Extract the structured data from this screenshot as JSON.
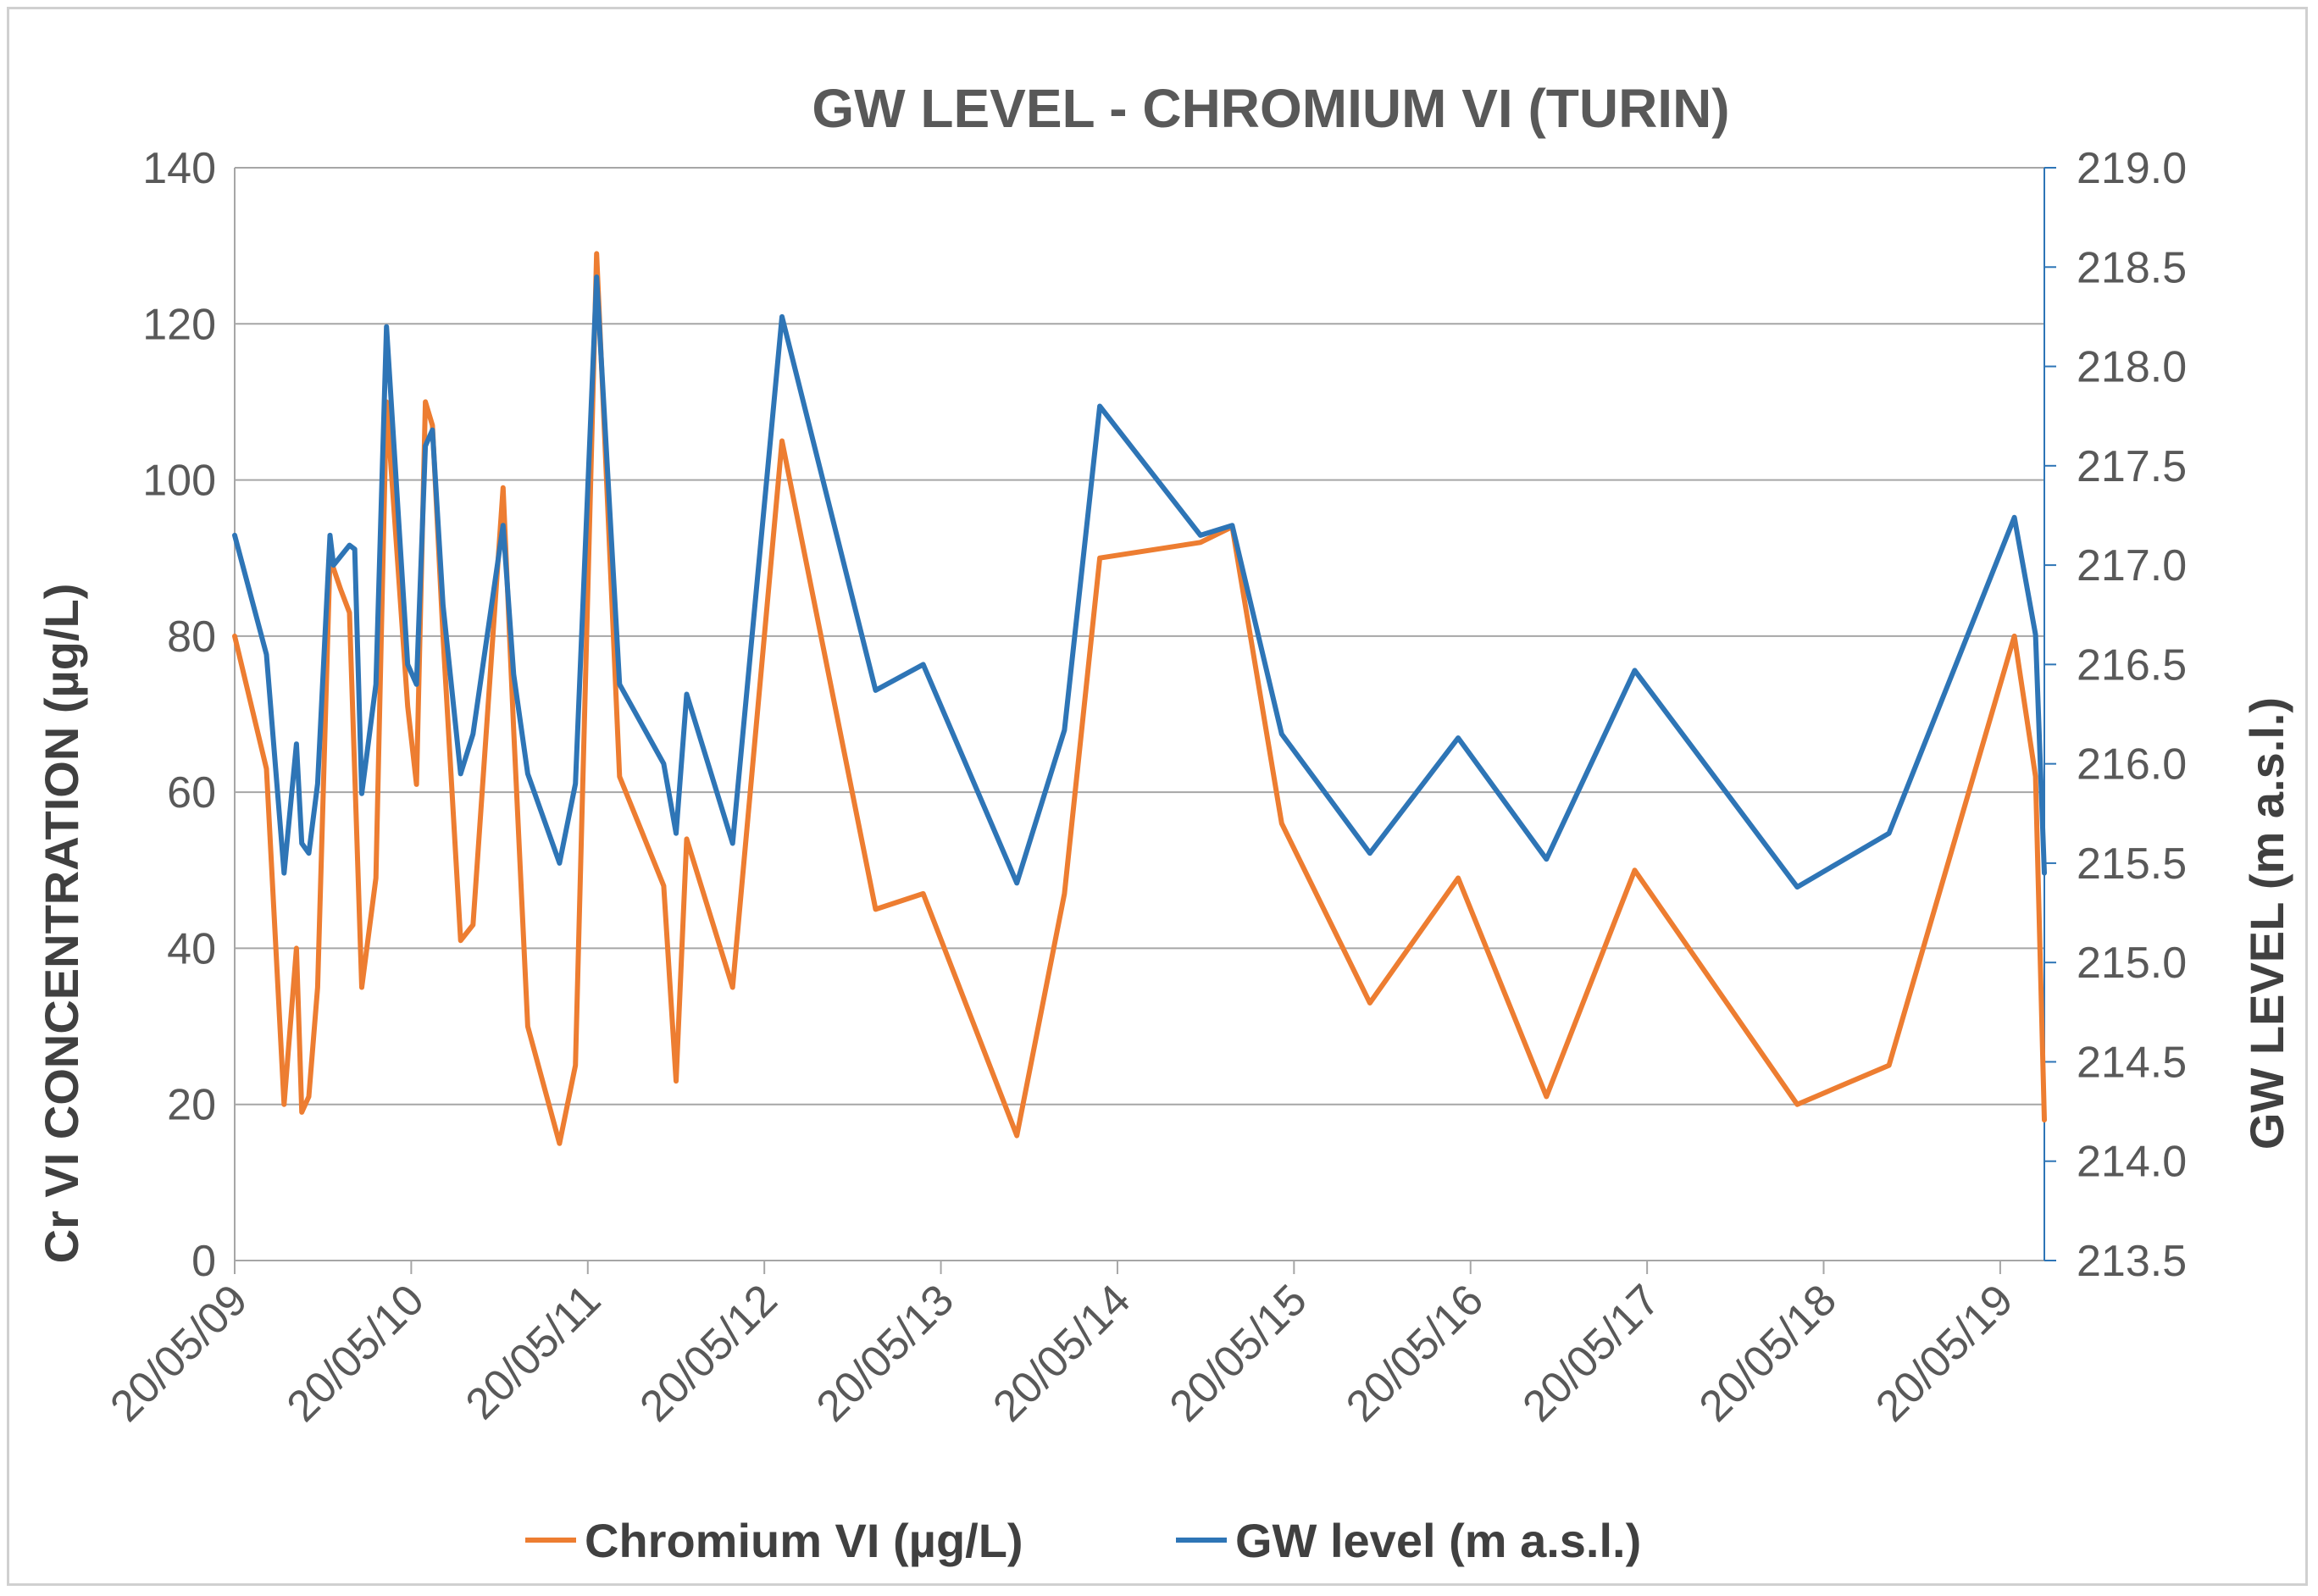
{
  "chart_data": {
    "type": "line",
    "title": "GW  LEVEL - CHROMIUM VI (TURIN)",
    "ylabel_left": "Cr VI CONCENTRATION (µg/L)",
    "ylabel_right": "GW LEVEL (m a.s.l.)",
    "ylim_left": [
      0,
      140
    ],
    "ylim_right": [
      213.5,
      219.0
    ],
    "yticks_left": [
      "0",
      "20",
      "40",
      "60",
      "80",
      "100",
      "120",
      "140"
    ],
    "yticks_right": [
      "213.5",
      "214.0",
      "214.5",
      "215.0",
      "215.5",
      "216.0",
      "216.5",
      "217.0",
      "217.5",
      "218.0",
      "218.5",
      "219.0"
    ],
    "xlim_years": [
      0,
      10.25
    ],
    "xticks": [
      "20/05/09",
      "20/05/10",
      "20/05/11",
      "20/05/12",
      "20/05/13",
      "20/05/14",
      "20/05/15",
      "20/05/16",
      "20/05/17",
      "20/05/18",
      "20/05/19"
    ],
    "x_unit": "years since 20/05/09",
    "gridlines": "horizontal",
    "legend_position": "bottom",
    "series": [
      {
        "name": "Chromium VI (µg/L)",
        "axis": "left",
        "color": "#ED7D31",
        "points": [
          [
            0.0,
            80
          ],
          [
            0.18,
            63
          ],
          [
            0.28,
            20
          ],
          [
            0.35,
            40
          ],
          [
            0.38,
            19
          ],
          [
            0.42,
            21
          ],
          [
            0.47,
            35
          ],
          [
            0.54,
            90
          ],
          [
            0.6,
            86
          ],
          [
            0.65,
            83
          ],
          [
            0.72,
            35
          ],
          [
            0.8,
            49
          ],
          [
            0.86,
            110
          ],
          [
            0.98,
            71
          ],
          [
            1.03,
            61
          ],
          [
            1.08,
            110
          ],
          [
            1.12,
            107
          ],
          [
            1.18,
            80
          ],
          [
            1.28,
            41
          ],
          [
            1.35,
            43
          ],
          [
            1.52,
            99
          ],
          [
            1.58,
            68
          ],
          [
            1.66,
            30
          ],
          [
            1.84,
            15
          ],
          [
            1.93,
            25
          ],
          [
            2.05,
            129
          ],
          [
            2.18,
            62
          ],
          [
            2.43,
            48
          ],
          [
            2.5,
            23
          ],
          [
            2.56,
            54
          ],
          [
            2.82,
            35
          ],
          [
            3.1,
            105
          ],
          [
            3.63,
            45
          ],
          [
            3.9,
            47
          ],
          [
            4.43,
            16
          ],
          [
            4.7,
            47
          ],
          [
            4.9,
            90
          ],
          [
            5.47,
            92
          ],
          [
            5.65,
            94
          ],
          [
            5.93,
            56
          ],
          [
            6.43,
            33
          ],
          [
            6.93,
            49
          ],
          [
            7.43,
            21
          ],
          [
            7.93,
            50
          ],
          [
            8.85,
            20
          ],
          [
            9.37,
            25
          ],
          [
            10.08,
            80
          ],
          [
            10.2,
            62
          ],
          [
            10.25,
            18
          ]
        ]
      },
      {
        "name": "GW level (m a.s.l.)",
        "axis": "right",
        "color": "#2E75B6",
        "points": [
          [
            0.0,
            217.15
          ],
          [
            0.18,
            216.55
          ],
          [
            0.28,
            215.45
          ],
          [
            0.35,
            216.1
          ],
          [
            0.38,
            215.6
          ],
          [
            0.42,
            215.55
          ],
          [
            0.47,
            215.9
          ],
          [
            0.54,
            217.15
          ],
          [
            0.56,
            217.0
          ],
          [
            0.65,
            217.1
          ],
          [
            0.68,
            217.08
          ],
          [
            0.72,
            215.85
          ],
          [
            0.8,
            216.4
          ],
          [
            0.86,
            218.2
          ],
          [
            0.98,
            216.5
          ],
          [
            1.03,
            216.4
          ],
          [
            1.08,
            217.6
          ],
          [
            1.12,
            217.68
          ],
          [
            1.18,
            216.8
          ],
          [
            1.28,
            215.95
          ],
          [
            1.35,
            216.15
          ],
          [
            1.52,
            217.2
          ],
          [
            1.58,
            216.45
          ],
          [
            1.66,
            215.95
          ],
          [
            1.84,
            215.5
          ],
          [
            1.93,
            215.9
          ],
          [
            2.05,
            218.45
          ],
          [
            2.18,
            216.4
          ],
          [
            2.43,
            216.0
          ],
          [
            2.5,
            215.65
          ],
          [
            2.56,
            216.35
          ],
          [
            2.82,
            215.6
          ],
          [
            3.1,
            218.25
          ],
          [
            3.63,
            216.37
          ],
          [
            3.9,
            216.5
          ],
          [
            4.43,
            215.4
          ],
          [
            4.7,
            216.17
          ],
          [
            4.9,
            217.8
          ],
          [
            5.47,
            217.15
          ],
          [
            5.65,
            217.2
          ],
          [
            5.93,
            216.15
          ],
          [
            6.43,
            215.55
          ],
          [
            6.93,
            216.13
          ],
          [
            7.43,
            215.52
          ],
          [
            7.93,
            216.47
          ],
          [
            8.85,
            215.38
          ],
          [
            9.37,
            215.65
          ],
          [
            10.08,
            217.24
          ],
          [
            10.2,
            216.65
          ],
          [
            10.25,
            215.45
          ]
        ]
      }
    ]
  }
}
